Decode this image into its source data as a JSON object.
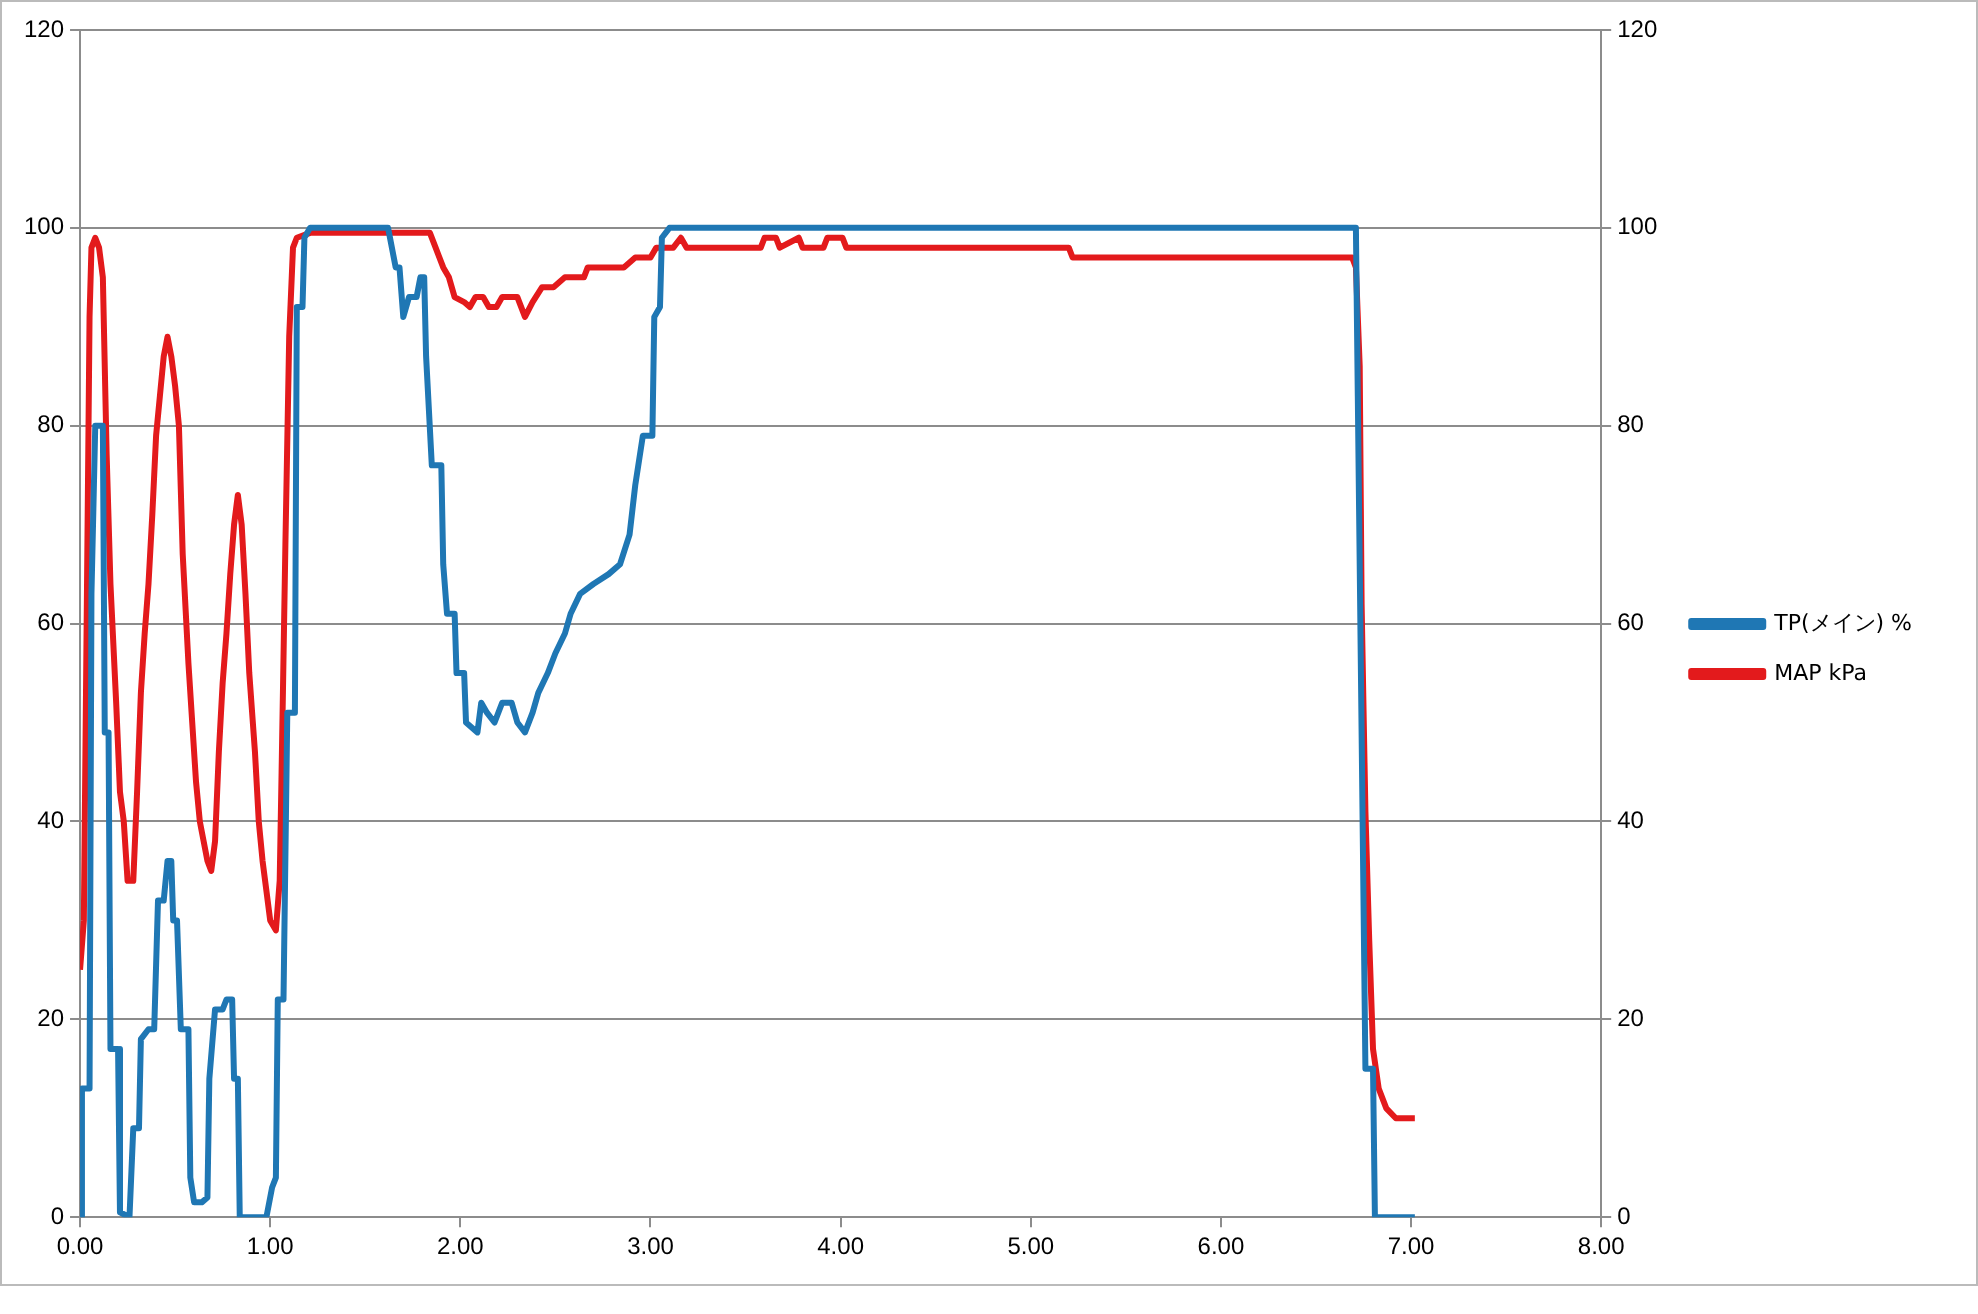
{
  "chart_data": {
    "type": "line",
    "legend": "right",
    "grid": "y",
    "marker": "none",
    "line_style": "solid",
    "xlim": [
      0,
      8
    ],
    "xticks": [
      {
        "value": 0,
        "label": "0.00"
      },
      {
        "value": 1,
        "label": "1.00"
      },
      {
        "value": 2,
        "label": "2.00"
      },
      {
        "value": 3,
        "label": "3.00"
      },
      {
        "value": 4,
        "label": "4.00"
      },
      {
        "value": 5,
        "label": "5.00"
      },
      {
        "value": 6,
        "label": "6.00"
      },
      {
        "value": 7,
        "label": "7.00"
      },
      {
        "value": 8,
        "label": "8.00"
      }
    ],
    "ylim": [
      0,
      120
    ],
    "yticks": [
      0,
      20,
      40,
      60,
      80,
      100,
      120
    ],
    "y2lim": [
      0,
      120
    ],
    "y2ticks": [
      0,
      20,
      40,
      60,
      80,
      100,
      120
    ],
    "series": [
      {
        "name": "TP(メイン) %",
        "color": "#1f77b4",
        "x": [
          0,
          0.01,
          0.05,
          0.06,
          0.08,
          0.12,
          0.13,
          0.15,
          0.16,
          0.2,
          0.21,
          0.26,
          0.28,
          0.31,
          0.32,
          0.36,
          0.39,
          0.41,
          0.44,
          0.46,
          0.48,
          0.49,
          0.51,
          0.53,
          0.57,
          0.58,
          0.6,
          0.64,
          0.67,
          0.68,
          0.71,
          0.75,
          0.77,
          0.8,
          0.81,
          0.83,
          0.84,
          0.98,
          1.01,
          1.03,
          1.04,
          1.07,
          1.09,
          1.13,
          1.14,
          1.17,
          1.18,
          1.21,
          1.62,
          1.66,
          1.68,
          1.7,
          1.73,
          1.77,
          1.79,
          1.81,
          1.82,
          1.85,
          1.9,
          1.91,
          1.93,
          1.97,
          1.98,
          2.02,
          2.03,
          2.09,
          2.11,
          2.14,
          2.18,
          2.22,
          2.27,
          2.3,
          2.34,
          2.38,
          2.41,
          2.46,
          2.5,
          2.55,
          2.58,
          2.63,
          2.7,
          2.78,
          2.84,
          2.89,
          2.92,
          2.96,
          3.01,
          3.02,
          3.05,
          3.06,
          3.1,
          6.71,
          6.72,
          6.76,
          6.8,
          6.81,
          7.02
        ],
        "values": [
          0,
          13,
          13,
          63,
          80,
          80,
          49,
          49,
          17,
          17,
          0.5,
          0,
          9,
          9,
          18,
          19,
          19,
          32,
          32,
          36,
          36,
          30,
          30,
          19,
          19,
          4,
          1.5,
          1.5,
          2,
          14,
          21,
          21,
          22,
          22,
          14,
          14,
          0,
          0,
          3,
          4,
          22,
          22,
          51,
          51,
          92,
          92,
          99,
          100,
          100,
          96,
          96,
          91,
          93,
          93,
          95,
          95,
          87,
          76,
          76,
          66,
          61,
          61,
          55,
          55,
          50,
          49,
          52,
          51,
          50,
          52,
          52,
          50,
          49,
          51,
          53,
          55,
          57,
          59,
          61,
          63,
          64,
          65,
          66,
          69,
          74,
          79,
          79,
          91,
          92,
          99,
          100,
          100,
          83,
          15,
          15,
          0,
          0
        ]
      },
      {
        "name": "MAP kPa",
        "color": "#e31a1c",
        "x": [
          0,
          0.02,
          0.05,
          0.06,
          0.08,
          0.1,
          0.12,
          0.14,
          0.16,
          0.19,
          0.21,
          0.23,
          0.25,
          0.28,
          0.3,
          0.32,
          0.34,
          0.36,
          0.38,
          0.4,
          0.42,
          0.44,
          0.46,
          0.48,
          0.5,
          0.52,
          0.54,
          0.57,
          0.59,
          0.61,
          0.63,
          0.65,
          0.67,
          0.69,
          0.71,
          0.73,
          0.75,
          0.77,
          0.79,
          0.81,
          0.83,
          0.85,
          0.87,
          0.89,
          0.92,
          0.94,
          0.96,
          0.98,
          1.0,
          1.03,
          1.05,
          1.06,
          1.08,
          1.1,
          1.12,
          1.14,
          1.21,
          1.84,
          1.87,
          1.91,
          1.94,
          1.97,
          2.02,
          2.05,
          2.08,
          2.12,
          2.15,
          2.19,
          2.22,
          2.3,
          2.34,
          2.38,
          2.43,
          2.49,
          2.55,
          2.65,
          2.67,
          2.86,
          2.92,
          3.0,
          3.03,
          3.12,
          3.16,
          3.19,
          3.58,
          3.6,
          3.66,
          3.68,
          3.78,
          3.8,
          3.91,
          3.93,
          4.01,
          4.03,
          5.2,
          5.22,
          6.69,
          6.71,
          6.73,
          6.74,
          6.76,
          6.78,
          6.8,
          6.83,
          6.87,
          6.92,
          7.02
        ],
        "values": [
          25,
          30,
          91,
          98,
          99,
          98,
          95,
          77,
          64,
          52,
          43,
          40,
          34,
          34,
          43,
          53,
          59,
          64,
          71,
          79,
          83,
          87,
          89,
          87,
          84,
          80,
          67,
          56,
          50,
          44,
          40,
          38,
          36,
          35,
          38,
          47,
          54,
          59,
          65,
          70,
          73,
          70,
          63,
          55,
          47,
          40,
          36,
          33,
          30,
          29,
          34,
          45,
          68,
          89,
          98,
          99,
          99.5,
          99.5,
          98,
          96,
          95,
          93,
          92.5,
          92,
          93,
          93,
          92,
          92,
          93,
          93,
          91,
          92.5,
          94,
          94,
          95,
          95,
          96,
          96,
          97,
          97,
          98,
          98,
          99,
          98,
          98,
          99,
          99,
          98,
          99,
          98,
          98,
          99,
          99,
          98,
          98,
          97,
          97,
          96,
          86,
          62,
          41,
          28,
          17,
          13,
          11,
          10,
          10
        ]
      }
    ]
  }
}
